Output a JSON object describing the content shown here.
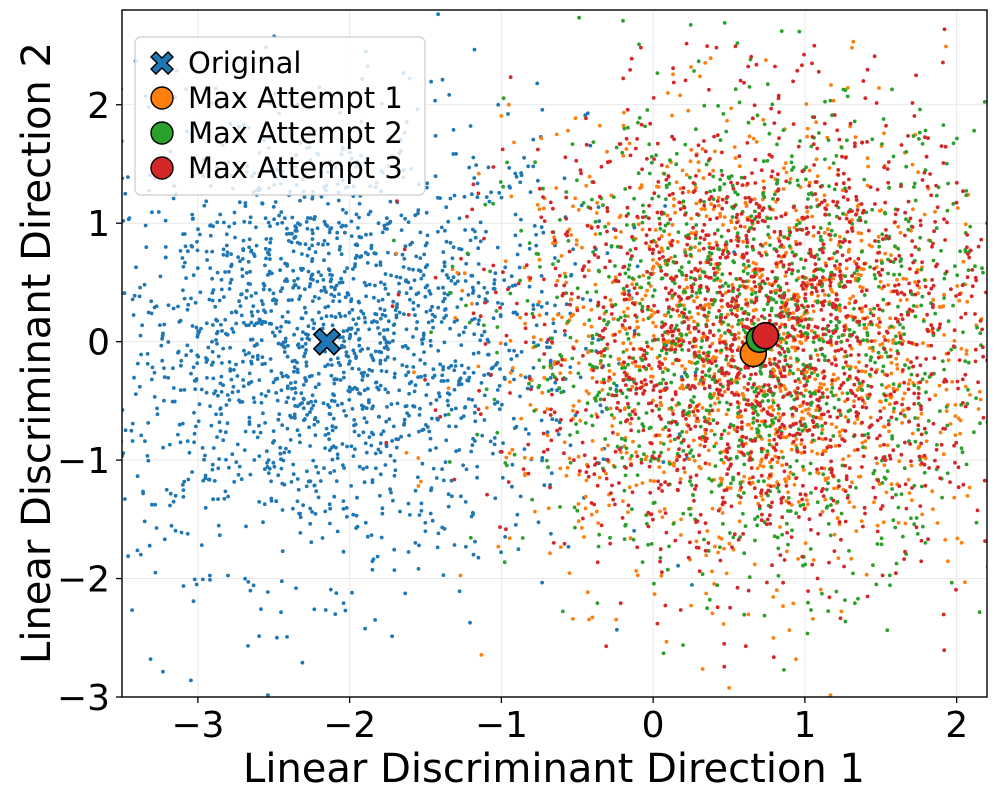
{
  "chart_data": {
    "type": "scatter",
    "title": "",
    "xlabel": "Linear Discriminant Direction 1",
    "ylabel": "Linear Discriminant Direction 2",
    "xlim": [
      -3.5,
      2.2
    ],
    "ylim": [
      -3,
      2.8
    ],
    "xticks": [
      -3,
      -2,
      -1,
      0,
      1,
      2
    ],
    "yticks": [
      -3,
      -2,
      -1,
      0,
      1,
      2
    ],
    "xtick_labels": [
      "−3",
      "−2",
      "−1",
      "0",
      "1",
      "2"
    ],
    "ytick_labels": [
      "−3",
      "−2",
      "−1",
      "0",
      "1",
      "2"
    ],
    "grid": true,
    "legend_position": "top-left",
    "series": [
      {
        "name": "Original",
        "color": "#1f77b4",
        "marker": "X",
        "centroid": [
          -2.15,
          0.0
        ],
        "spread": [
          0.85,
          0.95
        ],
        "approx_points": 2000
      },
      {
        "name": "Max Attempt 1",
        "color": "#ff7f0e",
        "marker": "o",
        "centroid": [
          0.66,
          -0.1
        ],
        "spread": [
          0.8,
          0.95
        ],
        "approx_points": 1400
      },
      {
        "name": "Max Attempt 2",
        "color": "#2ca02c",
        "marker": "o",
        "centroid": [
          0.7,
          0.02
        ],
        "spread": [
          0.8,
          0.95
        ],
        "approx_points": 1400
      },
      {
        "name": "Max Attempt 3",
        "color": "#d62728",
        "marker": "o",
        "centroid": [
          0.74,
          0.05
        ],
        "spread": [
          0.8,
          0.95
        ],
        "approx_points": 1800
      }
    ]
  }
}
